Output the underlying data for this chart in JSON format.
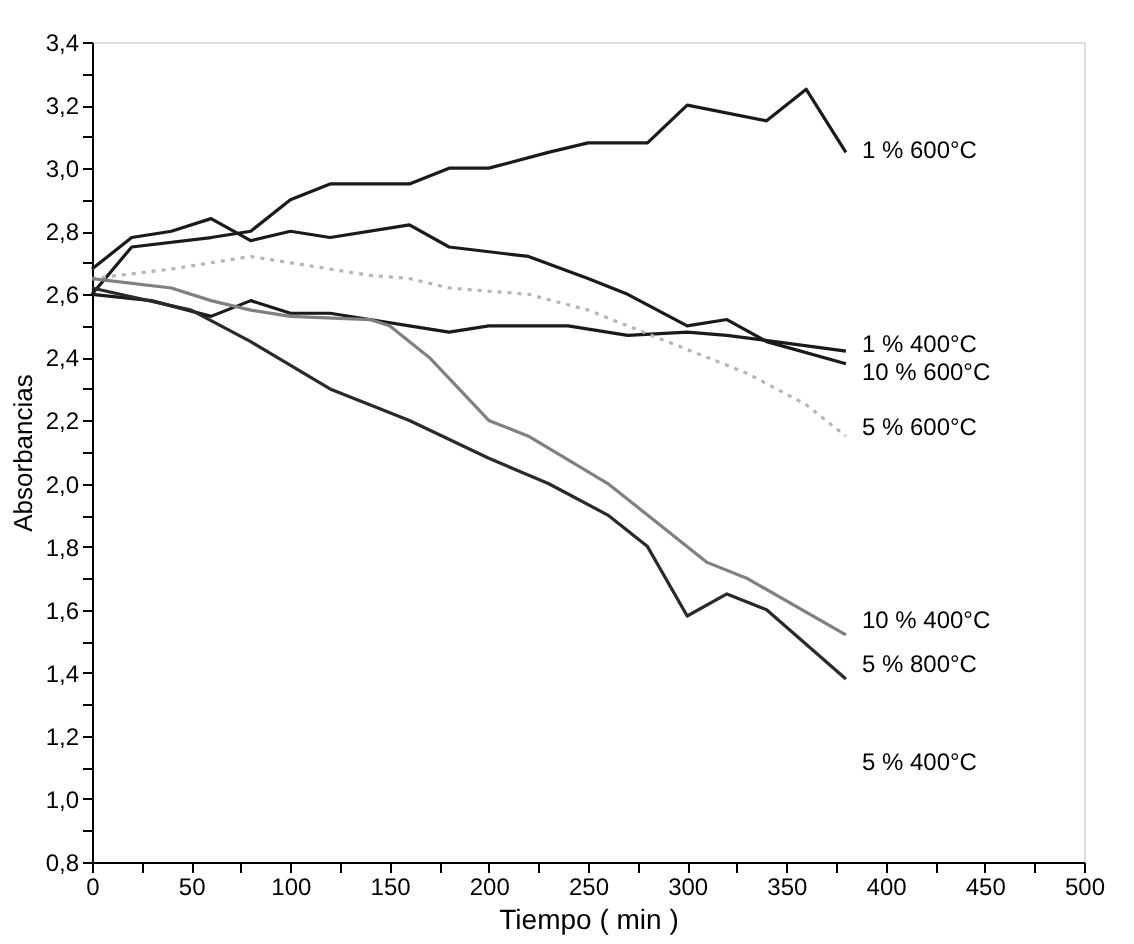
{
  "chart_data": {
    "type": "line",
    "xlabel": "Tiempo ( min )",
    "ylabel": "Absorbancias",
    "xlim": [
      0,
      500
    ],
    "ylim": [
      0.8,
      3.4
    ],
    "xticks": [
      0,
      {
        "value": 25,
        "label": null
      },
      50,
      {
        "value": 75,
        "label": null
      },
      100,
      {
        "value": 125,
        "label": null
      },
      150,
      {
        "value": 175,
        "label": null
      },
      200,
      {
        "value": 225,
        "label": null
      },
      250,
      {
        "value": 275,
        "label": null
      },
      300,
      {
        "value": 325,
        "label": null
      },
      350,
      {
        "value": 375,
        "label": null
      },
      400,
      {
        "value": 425,
        "label": null
      },
      450,
      {
        "value": 475,
        "label": null
      },
      500
    ],
    "yticks": [
      {
        "value": 0.8,
        "label": "0,8"
      },
      {
        "value": 0.9,
        "label": null
      },
      {
        "value": 1.0,
        "label": "1,0"
      },
      {
        "value": 1.1,
        "label": null
      },
      {
        "value": 1.2,
        "label": "1,2"
      },
      {
        "value": 1.3,
        "label": null
      },
      {
        "value": 1.4,
        "label": "1,4"
      },
      {
        "value": 1.5,
        "label": null
      },
      {
        "value": 1.6,
        "label": "1,6"
      },
      {
        "value": 1.7,
        "label": null
      },
      {
        "value": 1.8,
        "label": "1,8"
      },
      {
        "value": 1.9,
        "label": null
      },
      {
        "value": 2.0,
        "label": "2,0"
      },
      {
        "value": 2.1,
        "label": null
      },
      {
        "value": 2.2,
        "label": "2,2"
      },
      {
        "value": 2.3,
        "label": null
      },
      {
        "value": 2.4,
        "label": "2,4"
      },
      {
        "value": 2.5,
        "label": null
      },
      {
        "value": 2.6,
        "label": "2,6"
      },
      {
        "value": 2.7,
        "label": null
      },
      {
        "value": 2.8,
        "label": "2,8"
      },
      {
        "value": 2.9,
        "label": null
      },
      {
        "value": 3.0,
        "label": "3,0"
      },
      {
        "value": 3.1,
        "label": null
      },
      {
        "value": 3.2,
        "label": "3,2"
      },
      {
        "value": 3.3,
        "label": null
      },
      {
        "value": 3.4,
        "label": "3,4"
      }
    ],
    "grid": false,
    "marker": "none",
    "series": [
      {
        "name": "1 % 600°C",
        "color": "#1a1a1a",
        "x": [
          0,
          20,
          60,
          80,
          100,
          120,
          160,
          180,
          200,
          230,
          250,
          280,
          300,
          340,
          360,
          380
        ],
        "values": [
          2.6,
          2.75,
          2.78,
          2.8,
          2.9,
          2.95,
          2.95,
          3.0,
          3.0,
          3.05,
          3.08,
          3.08,
          3.2,
          3.15,
          3.25,
          3.05
        ]
      },
      {
        "name": "1 % 400°C",
        "color": "#1a1a1a",
        "x": [
          0,
          30,
          60,
          80,
          100,
          120,
          140,
          160,
          180,
          200,
          240,
          270,
          300,
          320,
          380
        ],
        "values": [
          2.6,
          2.58,
          2.53,
          2.58,
          2.54,
          2.54,
          2.52,
          2.5,
          2.48,
          2.5,
          2.5,
          2.47,
          2.48,
          2.47,
          2.42
        ]
      },
      {
        "name": "10 % 600°C",
        "color": "#1a1a1a",
        "x": [
          0,
          20,
          40,
          60,
          80,
          100,
          120,
          160,
          180,
          220,
          250,
          270,
          300,
          320,
          340,
          380
        ],
        "values": [
          2.68,
          2.78,
          2.8,
          2.84,
          2.77,
          2.8,
          2.78,
          2.82,
          2.75,
          2.72,
          2.65,
          2.6,
          2.5,
          2.52,
          2.45,
          2.38
        ]
      },
      {
        "name": "5 % 600°C",
        "color": "#b5b5b5",
        "line_style": "dotted",
        "x": [
          0,
          40,
          80,
          100,
          140,
          160,
          180,
          220,
          250,
          290,
          330,
          360,
          380
        ],
        "values": [
          2.65,
          2.68,
          2.72,
          2.7,
          2.66,
          2.65,
          2.62,
          2.6,
          2.55,
          2.45,
          2.35,
          2.25,
          2.15
        ]
      },
      {
        "name": "10 % 400°C",
        "color": "#808080",
        "x": [
          0,
          40,
          60,
          80,
          100,
          140,
          150,
          170,
          200,
          220,
          260,
          280,
          310,
          330,
          380
        ],
        "values": [
          2.65,
          2.62,
          2.58,
          2.55,
          2.53,
          2.52,
          2.5,
          2.4,
          2.2,
          2.15,
          2.0,
          1.9,
          1.75,
          1.7,
          1.52
        ]
      },
      {
        "name": "5 % 800°C",
        "color": "#2a2a2a",
        "x": [
          0,
          50,
          80,
          120,
          160,
          200,
          230,
          260,
          280,
          300,
          320,
          340,
          380
        ],
        "values": [
          2.62,
          2.55,
          2.45,
          2.3,
          2.2,
          2.08,
          2.0,
          1.9,
          1.8,
          1.58,
          1.65,
          1.6,
          1.38
        ]
      }
    ],
    "annotations": [
      "5 % 400°C"
    ]
  }
}
